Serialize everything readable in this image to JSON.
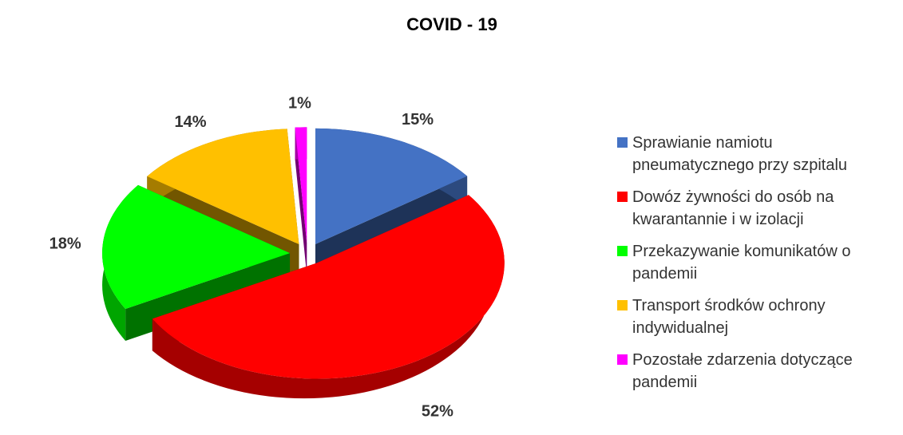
{
  "chart_data": {
    "type": "pie",
    "title": "COVID - 19",
    "categories": [
      "Sprawianie namiotu pneumatycznego przy szpitalu",
      "Dowóz żywności do osób na kwarantannie i w izolacji",
      "Przekazywanie komunikatów o pandemii",
      "Transport środków ochrony indywidualnej",
      "Pozostałe zdarzenia dotyczące pandemii"
    ],
    "values": [
      15,
      52,
      18,
      14,
      1
    ],
    "value_labels": [
      "15%",
      "52%",
      "18%",
      "14%",
      "1%"
    ],
    "colors": [
      "#4472c4",
      "#ff0000",
      "#00ff00",
      "#ffc000",
      "#ff00ff"
    ],
    "legend": "right"
  }
}
